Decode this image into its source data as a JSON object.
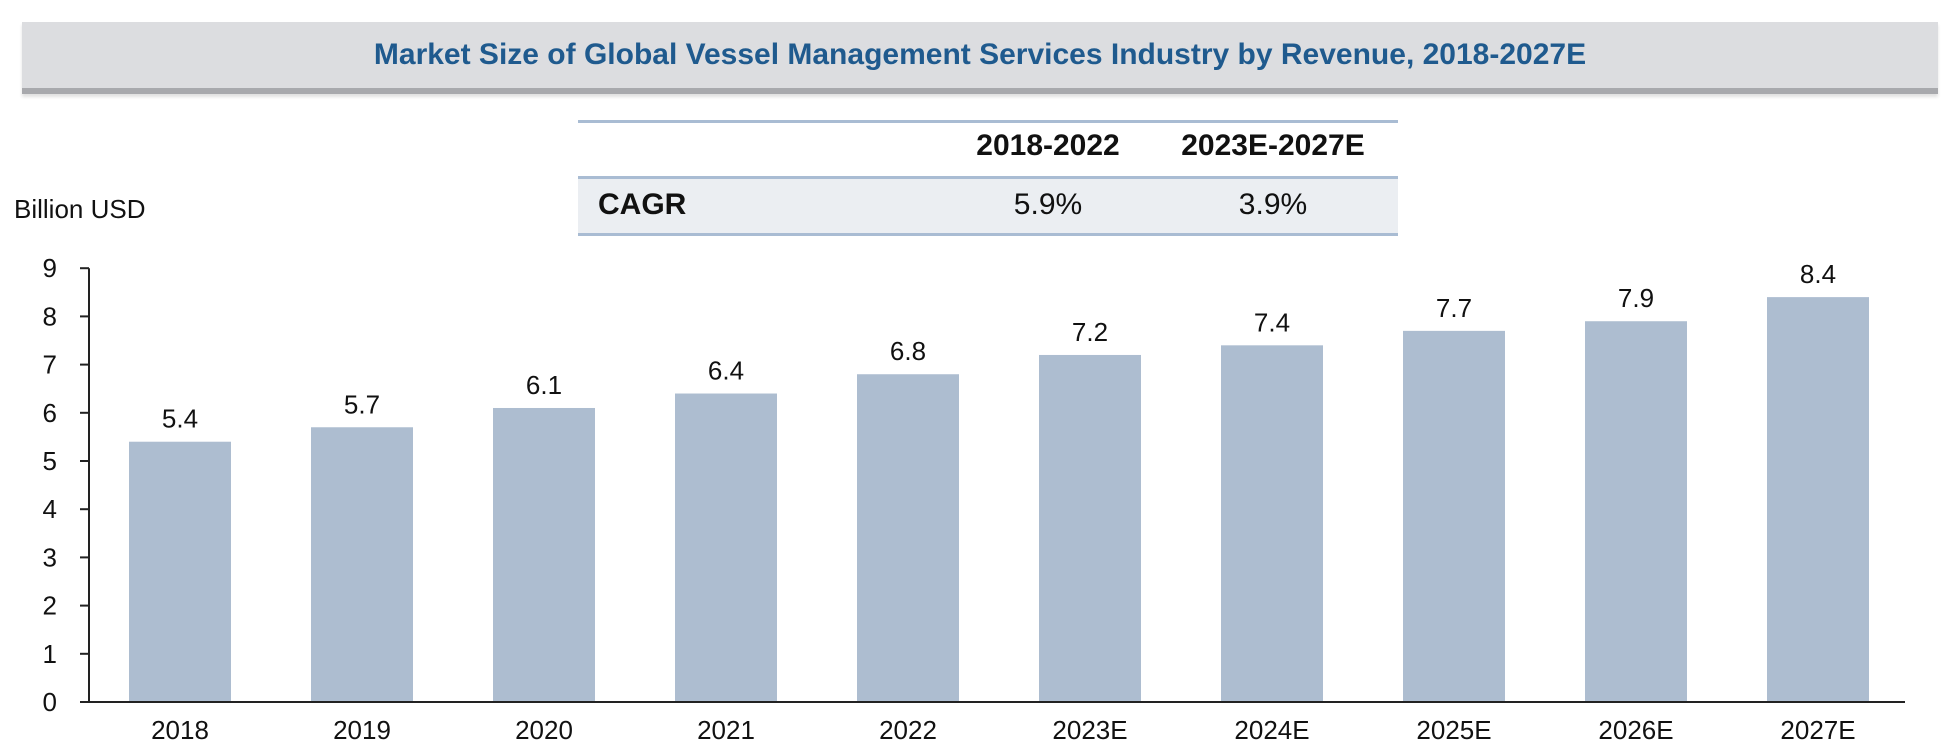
{
  "title": "Market Size of Global Vessel Management Services Industry by Revenue, 2018-2027E",
  "cagr_table": {
    "headers": [
      "2018-2022",
      "2023E-2027E"
    ],
    "row_label": "CAGR",
    "values": [
      "5.9%",
      "3.9%"
    ]
  },
  "colors": {
    "bar": "#adbdd0",
    "title_text": "#1f5a8e",
    "title_band": "#dcdde0",
    "axis": "#222222",
    "table_rule": "#a9bcd3",
    "table_row_bg": "#ebeef2"
  },
  "chart_data": {
    "type": "bar",
    "title": "Market Size of Global Vessel Management Services Industry by Revenue, 2018-2027E",
    "xlabel": "",
    "ylabel": "Billion USD",
    "categories": [
      "2018",
      "2019",
      "2020",
      "2021",
      "2022",
      "2023E",
      "2024E",
      "2025E",
      "2026E",
      "2027E"
    ],
    "values": [
      5.4,
      5.7,
      6.1,
      6.4,
      6.8,
      7.2,
      7.4,
      7.7,
      7.9,
      8.4
    ],
    "value_labels": [
      "5.4",
      "5.7",
      "6.1",
      "6.4",
      "6.8",
      "7.2",
      "7.4",
      "7.7",
      "7.9",
      "8.4"
    ],
    "y_ticks": [
      0,
      1,
      2,
      3,
      4,
      5,
      6,
      7,
      8,
      9
    ],
    "ylim": [
      0,
      9
    ],
    "grid": false,
    "legend": "none"
  }
}
